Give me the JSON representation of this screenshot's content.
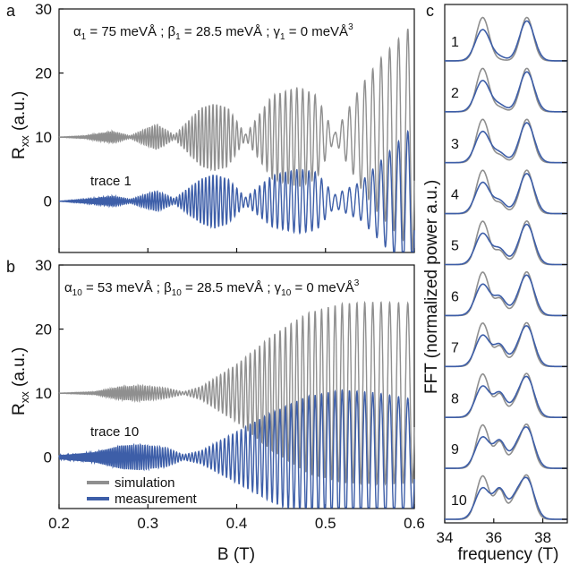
{
  "colors": {
    "simulation": "#8f8f8f",
    "measurement": "#3d5ea8"
  },
  "panels": {
    "a": "a",
    "b": "b",
    "c": "c"
  },
  "ylabel_main": "R",
  "ylabel_sub": "xx",
  "ylabel_unit": " (a.u.)",
  "fft_ylabel": "FFT (normalized power a.u.)",
  "legend": {
    "simulation": "simulation",
    "measurement": "measurement"
  },
  "chart_data": [
    {
      "id": "a",
      "type": "line",
      "title_parts": {
        "alpha": "α",
        "alpha_sub": "1",
        "alpha_val": " = 75 meVÅ ; ",
        "beta": "β",
        "beta_sub": "1",
        "beta_val": " = 28.5  meVÅ ; ",
        "gamma": "γ",
        "gamma_sub": "1",
        "gamma_val": " = 0 meVÅ",
        "gamma_sup": "3"
      },
      "annotation": "trace 1",
      "xlim": [
        0.2,
        0.6
      ],
      "ylim": [
        -8,
        30
      ],
      "yticks": [
        0,
        10,
        20,
        30
      ],
      "series": [
        {
          "name": "simulation",
          "offset": 10,
          "envelope_B": [
            0.2,
            0.23,
            0.26,
            0.28,
            0.31,
            0.33,
            0.36,
            0.375,
            0.39,
            0.41,
            0.44,
            0.47,
            0.49,
            0.51,
            0.54,
            0.56,
            0.58,
            0.6
          ],
          "envelope_amp": [
            0,
            0.2,
            0.9,
            0.2,
            2.0,
            0.3,
            4.6,
            5.2,
            4.6,
            0.4,
            6.5,
            7.8,
            6.5,
            0.5,
            8,
            12,
            15,
            18
          ]
        },
        {
          "name": "measurement",
          "offset": 0,
          "envelope_B": [
            0.2,
            0.23,
            0.26,
            0.28,
            0.31,
            0.33,
            0.36,
            0.375,
            0.39,
            0.41,
            0.44,
            0.47,
            0.49,
            0.51,
            0.54,
            0.56,
            0.58,
            0.6
          ],
          "envelope_amp": [
            0,
            0.3,
            0.8,
            0.3,
            1.6,
            0.4,
            3.5,
            4.2,
            3.5,
            0.6,
            4.0,
            5.0,
            4.5,
            1.0,
            3,
            6,
            9,
            12
          ]
        }
      ]
    },
    {
      "id": "b",
      "type": "line",
      "title_parts": {
        "alpha": "α",
        "alpha_sub": "10",
        "alpha_val": " = 53 meVÅ ; ",
        "beta": "β",
        "beta_sub": "10",
        "beta_val": " = 28.5  meVÅ ; ",
        "gamma": "γ",
        "gamma_sub": "10",
        "gamma_val": " = 0 meVÅ",
        "gamma_sup": "3"
      },
      "annotation": "trace 10",
      "xlabel": "B (T)",
      "xlim": [
        0.2,
        0.6
      ],
      "xticks": [
        "0.2",
        "0.3",
        "0.4",
        "0.5",
        "0.6"
      ],
      "ylim": [
        -8,
        30
      ],
      "yticks": [
        0,
        10,
        20,
        30
      ],
      "series": [
        {
          "name": "simulation",
          "offset": 10,
          "envelope_B": [
            0.2,
            0.24,
            0.27,
            0.29,
            0.32,
            0.34,
            0.36,
            0.4,
            0.44,
            0.48,
            0.52,
            0.56,
            0.6
          ],
          "envelope_amp": [
            0,
            0.2,
            1.0,
            1.2,
            0.8,
            0.2,
            1.0,
            4.5,
            9,
            12.5,
            14,
            14.2,
            14
          ]
        },
        {
          "name": "measurement",
          "offset": 0,
          "envelope_B": [
            0.2,
            0.24,
            0.27,
            0.29,
            0.32,
            0.34,
            0.36,
            0.4,
            0.44,
            0.48,
            0.52,
            0.56,
            0.6
          ],
          "envelope_amp": [
            0.3,
            0.8,
            1.8,
            2.0,
            1.5,
            0.4,
            1.0,
            4.0,
            7.0,
            9.5,
            10.5,
            10.0,
            9.0
          ]
        }
      ]
    },
    {
      "id": "c",
      "type": "line",
      "xlabel": "frequency (T)",
      "xlim": [
        34,
        39
      ],
      "xticks": [
        "34",
        "36",
        "38"
      ],
      "traces": [
        "1",
        "2",
        "3",
        "4",
        "5",
        "6",
        "7",
        "8",
        "9",
        "10"
      ],
      "peak_positions_T": [
        35.5,
        36.3,
        36.6,
        37.3
      ]
    }
  ]
}
